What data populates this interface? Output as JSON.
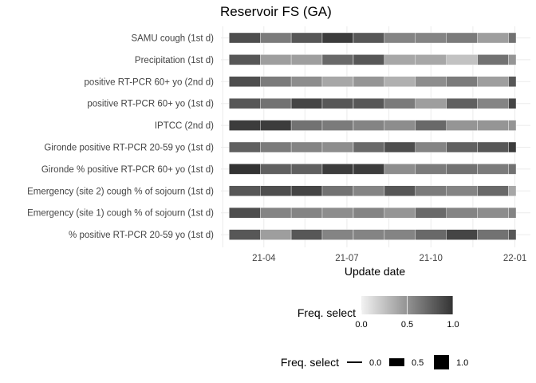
{
  "chart_data": {
    "type": "heatmap",
    "title": "Reservoir FS (GA)",
    "xlabel": "Update date",
    "ylabel": "",
    "x_ticks": [
      "21-04",
      "21-07",
      "21-10",
      "22-01"
    ],
    "x_range": [
      "2021-02-13",
      "2022-01-18"
    ],
    "columns": [
      {
        "start": "2021-02-22",
        "end": "2021-03-28"
      },
      {
        "start": "2021-03-28",
        "end": "2021-05-01"
      },
      {
        "start": "2021-05-01",
        "end": "2021-06-04"
      },
      {
        "start": "2021-06-04",
        "end": "2021-07-08"
      },
      {
        "start": "2021-07-08",
        "end": "2021-08-11"
      },
      {
        "start": "2021-08-11",
        "end": "2021-09-14"
      },
      {
        "start": "2021-09-14",
        "end": "2021-10-18"
      },
      {
        "start": "2021-10-18",
        "end": "2021-11-21"
      },
      {
        "start": "2021-11-21",
        "end": "2021-12-25"
      },
      {
        "start": "2021-12-25",
        "end": "2022-01-28"
      }
    ],
    "series": [
      {
        "name": "SAMU cough (1st d)",
        "values": [
          0.85,
          0.6,
          0.8,
          0.95,
          0.8,
          0.55,
          0.55,
          0.6,
          0.4,
          0.65
        ]
      },
      {
        "name": "Precipitation (1st d)",
        "values": [
          0.8,
          0.4,
          0.4,
          0.7,
          0.8,
          0.35,
          0.35,
          0.2,
          0.65,
          0.45
        ]
      },
      {
        "name": "positive RT-PCR 60+ yo (2nd d)",
        "values": [
          0.85,
          0.6,
          0.5,
          0.35,
          0.45,
          0.3,
          0.5,
          0.6,
          0.4,
          0.8
        ]
      },
      {
        "name": "positive RT-PCR 60+ yo (1st d)",
        "values": [
          0.8,
          0.65,
          0.9,
          0.8,
          0.8,
          0.6,
          0.4,
          0.75,
          0.55,
          0.9
        ]
      },
      {
        "name": "IPTCC (2nd d)",
        "values": [
          0.95,
          0.95,
          0.65,
          0.6,
          0.55,
          0.5,
          0.7,
          0.45,
          0.45,
          0.45
        ]
      },
      {
        "name": "Gironde positive RT-PCR 20-59 yo (1st d)",
        "values": [
          0.75,
          0.6,
          0.55,
          0.5,
          0.7,
          0.85,
          0.55,
          0.75,
          0.8,
          0.95
        ]
      },
      {
        "name": "Gironde % positive RT-PCR 60+ yo (1st d)",
        "values": [
          1.0,
          0.75,
          0.75,
          0.95,
          0.95,
          0.5,
          0.6,
          0.65,
          0.6,
          0.65
        ]
      },
      {
        "name": "Emergency (site 2) cough % of sojourn (1st d)",
        "values": [
          0.8,
          0.85,
          0.9,
          0.65,
          0.55,
          0.8,
          0.6,
          0.55,
          0.7,
          0.35
        ]
      },
      {
        "name": "Emergency (site 1) cough % of sojourn (1st d)",
        "values": [
          0.85,
          0.55,
          0.55,
          0.5,
          0.55,
          0.45,
          0.7,
          0.55,
          0.5,
          0.55
        ]
      },
      {
        "name": "% positive RT-PCR 20-59 yo (1st d)",
        "values": [
          0.8,
          0.4,
          0.8,
          0.55,
          0.55,
          0.55,
          0.7,
          0.9,
          0.65,
          0.8
        ]
      }
    ],
    "color_scale": {
      "low": "#e6e6e6",
      "high": "#333333",
      "domain": [
        0,
        1
      ]
    },
    "grid": true,
    "legends": [
      {
        "title": "Freq. select",
        "kind": "colorbar",
        "ticks": [
          "0.0",
          "0.5",
          "1.0"
        ]
      },
      {
        "title": "Freq. select",
        "kind": "size",
        "ticks": [
          "0.0",
          "0.5",
          "1.0"
        ]
      }
    ],
    "legend_position": "bottom"
  }
}
